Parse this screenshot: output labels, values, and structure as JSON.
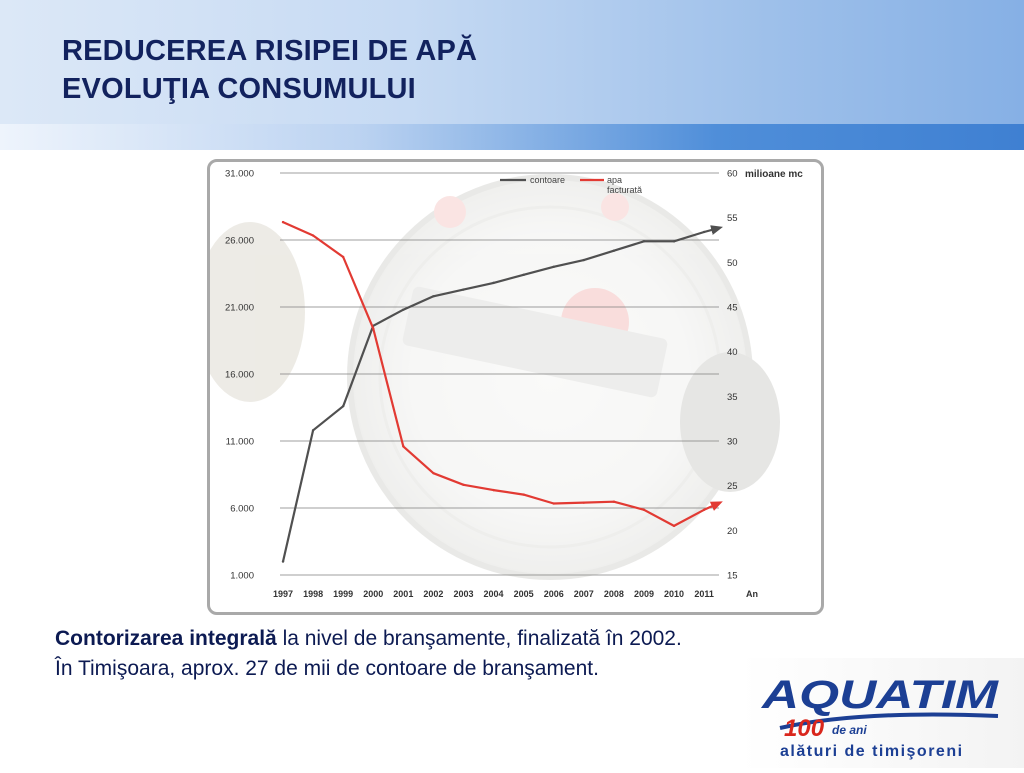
{
  "slide": {
    "title_line1": "REDUCEREA RISIPEI DE APĂ",
    "title_line2": "EVOLUŢIA CONSUMULUI",
    "caption_bold": "Contorizarea integrală",
    "caption_rest": " la nivel de branşamente, finalizată în 2002. În Timişoara, aprox. 27 de mii de contoare de branşament."
  },
  "logo": {
    "name": "AQUATIM",
    "number": "100",
    "suffix": "de ani",
    "tagline": "alături de timişoreni"
  },
  "colors": {
    "title": "#12225e",
    "caption": "#0c1a52",
    "contoare": "#505050",
    "apa": "#e23a33",
    "logo_blue": "#1c3f94",
    "logo_red": "#d9261c"
  },
  "chart_data": {
    "type": "line",
    "x": [
      "1997",
      "1998",
      "1999",
      "2000",
      "2001",
      "2002",
      "2003",
      "2004",
      "2005",
      "2006",
      "2007",
      "2008",
      "2009",
      "2010",
      "2011"
    ],
    "xlabel": "An",
    "y_left": {
      "ticks": [
        "31.000",
        "26.000",
        "21.000",
        "16.000",
        "11.000",
        "6.000",
        "1.000"
      ],
      "range": [
        1000,
        31000
      ]
    },
    "y_right": {
      "label": "milioane mc",
      "ticks": [
        "60",
        "55",
        "50",
        "45",
        "40",
        "35",
        "30",
        "25",
        "20",
        "15"
      ],
      "range": [
        15,
        60
      ]
    },
    "series": [
      {
        "name": "contoare",
        "axis": "left",
        "color": "#505050",
        "values": [
          2000,
          11800,
          13600,
          19600,
          20800,
          21800,
          22300,
          22800,
          23400,
          24000,
          24500,
          25200,
          25900,
          25900,
          26600
        ]
      },
      {
        "name": "apa facturată",
        "axis": "right",
        "color": "#e23a33",
        "values": [
          54.5,
          53.0,
          50.6,
          42.6,
          29.4,
          26.4,
          25.1,
          24.5,
          24.0,
          23.0,
          23.1,
          23.2,
          22.3,
          20.5,
          22.3
        ]
      }
    ],
    "legend": [
      {
        "label": "contoare",
        "color": "#505050"
      },
      {
        "label": "apa facturată",
        "color": "#e23a33"
      }
    ],
    "legend_position": "top-right",
    "grid": true
  }
}
